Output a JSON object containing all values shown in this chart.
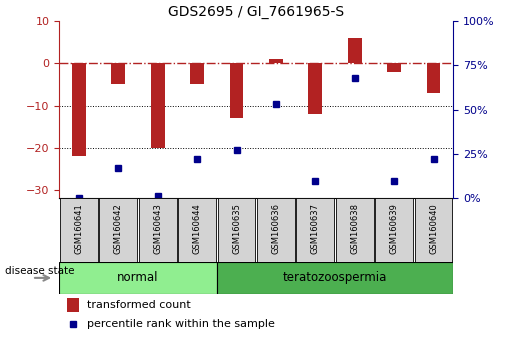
{
  "title": "GDS2695 / GI_7661965-S",
  "samples": [
    "GSM160641",
    "GSM160642",
    "GSM160643",
    "GSM160644",
    "GSM160635",
    "GSM160636",
    "GSM160637",
    "GSM160638",
    "GSM160639",
    "GSM160640"
  ],
  "groups": [
    "normal",
    "normal",
    "normal",
    "normal",
    "teratozoospermia",
    "teratozoospermia",
    "teratozoospermia",
    "teratozoospermia",
    "teratozoospermia",
    "teratozoospermia"
  ],
  "bar_values": [
    -22,
    -5,
    -20,
    -5,
    -13,
    1,
    -12,
    6,
    -2,
    -7
  ],
  "percentile_values": [
    0,
    17,
    1,
    22,
    27,
    53,
    10,
    68,
    10,
    22
  ],
  "bar_color": "#b22222",
  "dot_color": "#00008b",
  "ylim_left": [
    -32,
    10
  ],
  "ylim_right": [
    0,
    100
  ],
  "yticks_left": [
    -30,
    -20,
    -10,
    0,
    10
  ],
  "yticks_right": [
    0,
    25,
    50,
    75,
    100
  ],
  "normal_color": "#90ee90",
  "tera_color": "#4caf50",
  "normal_label": "normal",
  "tera_label": "teratozoospermia",
  "legend_bar_label": "transformed count",
  "legend_dot_label": "percentile rank within the sample",
  "disease_state_label": "disease state",
  "background_color": "#ffffff",
  "sample_box_color": "#d3d3d3",
  "bar_width": 0.35
}
